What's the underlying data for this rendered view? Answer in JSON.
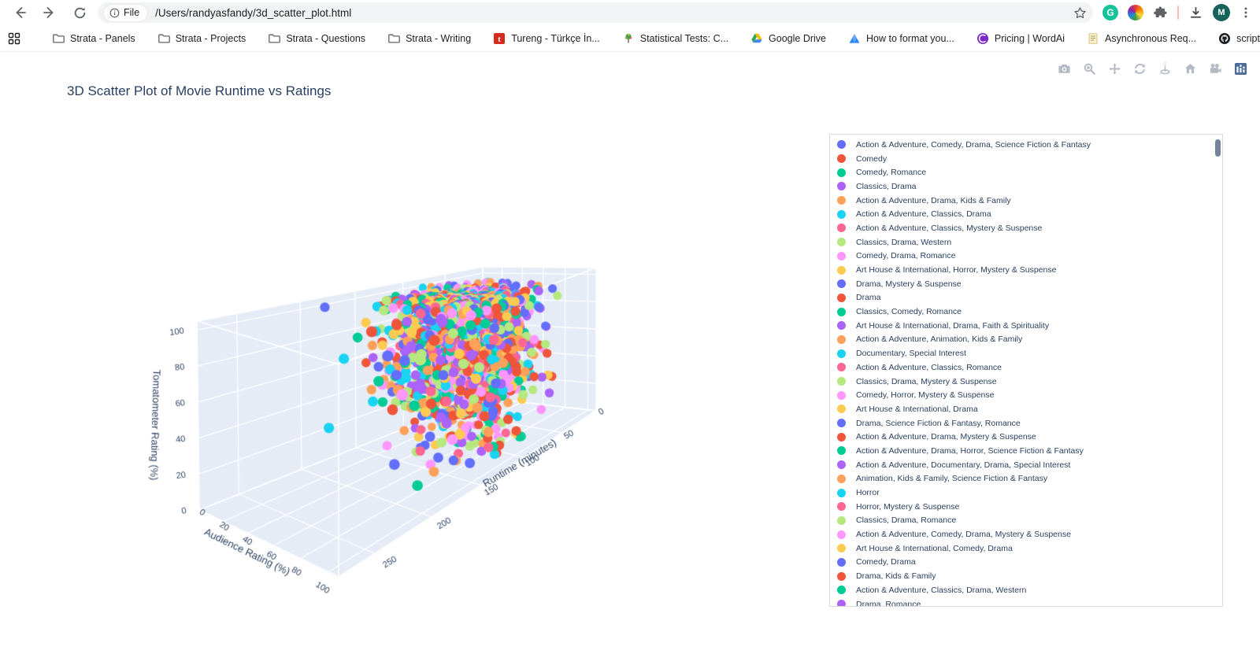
{
  "browser": {
    "toolbar": {
      "back": "back",
      "forward": "forward",
      "reload": "reload"
    },
    "address": {
      "origin_chip_label": "File",
      "url": "/Users/randyasfandy/3d_scatter_plot.html"
    },
    "actions": {
      "grammarly_letter": "G",
      "avatar_letter": "M"
    },
    "bookmarks": [
      {
        "label": "Strata - Panels",
        "icon": "folder"
      },
      {
        "label": "Strata - Projects",
        "icon": "folder"
      },
      {
        "label": "Strata - Questions",
        "icon": "folder"
      },
      {
        "label": "Strata - Writing",
        "icon": "folder"
      },
      {
        "label": "Tureng - Türkçe İn...",
        "icon": "tureng"
      },
      {
        "label": "Statistical Tests: C...",
        "icon": "tree"
      },
      {
        "label": "Google Drive",
        "icon": "drive"
      },
      {
        "label": "How to format you...",
        "icon": "mountain"
      },
      {
        "label": "Pricing | WordAi",
        "icon": "wordai"
      },
      {
        "label": "Asynchronous Req...",
        "icon": "doc"
      },
      {
        "label": "scripts/README.m...",
        "icon": "github"
      }
    ],
    "overflow_chevron": "»"
  },
  "plot": {
    "modebar": [
      "camera",
      "zoom",
      "pan",
      "orbit-rotation",
      "turntable-rotation",
      "reset-camera",
      "reset-camera-last-save",
      "plotly-logo"
    ]
  },
  "chart_data": {
    "type": "scatter3d",
    "title": "3D Scatter Plot of Movie Runtime vs Ratings",
    "scene_bgcolor": "#E5ECF6",
    "grid_color": "#ffffff",
    "text_color": "#2a3f5f",
    "axes": {
      "runtime": {
        "title": "Runtime (minutes)",
        "ticks": [
          0,
          50,
          100,
          150,
          200,
          250
        ],
        "range": [
          0,
          278
        ]
      },
      "audience": {
        "title": "Audience Rating (%)",
        "ticks": [
          0,
          20,
          40,
          60,
          80,
          100
        ],
        "range": [
          0,
          107
        ]
      },
      "tomatometer": {
        "title": "Tomatometer Rating (%)",
        "ticks": [
          0,
          20,
          40,
          60,
          80,
          100
        ],
        "range": [
          0,
          105
        ]
      }
    },
    "colorway": [
      "#636EFA",
      "#EF553B",
      "#00CC96",
      "#AB63FA",
      "#FFA15A",
      "#19D3F3",
      "#FF6692",
      "#B6E880",
      "#FF97FF",
      "#FECB52"
    ],
    "point_cloud": {
      "comment": "dense multi-genre cloud; values estimated from pixels, regenerated deterministically",
      "seed": 11,
      "count": 1750,
      "runtime": {
        "mean": 104,
        "sd": 27,
        "min": 45,
        "max": 272,
        "tail_prob": 0.06,
        "tail_scale": 90
      },
      "audience": {
        "mean": 62,
        "sd": 20,
        "min": 6,
        "max": 100,
        "low_outlier_prob": 0.03
      },
      "tomatometer": {
        "mean": 68,
        "sd": 30,
        "min": 2,
        "max": 100
      }
    },
    "legend": {
      "series": [
        {
          "label": "Action & Adventure, Comedy, Drama, Science Fiction & Fantasy",
          "color": "#636EFA"
        },
        {
          "label": "Comedy",
          "color": "#EF553B"
        },
        {
          "label": "Comedy, Romance",
          "color": "#00CC96"
        },
        {
          "label": "Classics, Drama",
          "color": "#AB63FA"
        },
        {
          "label": "Action & Adventure, Drama, Kids & Family",
          "color": "#FFA15A"
        },
        {
          "label": "Action & Adventure, Classics, Drama",
          "color": "#19D3F3"
        },
        {
          "label": "Action & Adventure, Classics, Mystery & Suspense",
          "color": "#FF6692"
        },
        {
          "label": "Classics, Drama, Western",
          "color": "#B6E880"
        },
        {
          "label": "Comedy, Drama, Romance",
          "color": "#FF97FF"
        },
        {
          "label": "Art House & International, Horror, Mystery & Suspense",
          "color": "#FECB52"
        },
        {
          "label": "Drama, Mystery & Suspense",
          "color": "#636EFA"
        },
        {
          "label": "Drama",
          "color": "#EF553B"
        },
        {
          "label": "Classics, Comedy, Romance",
          "color": "#00CC96"
        },
        {
          "label": "Art House & International, Drama, Faith & Spirituality",
          "color": "#AB63FA"
        },
        {
          "label": "Action & Adventure, Animation, Kids & Family",
          "color": "#FFA15A"
        },
        {
          "label": "Documentary, Special Interest",
          "color": "#19D3F3"
        },
        {
          "label": "Action & Adventure, Classics, Romance",
          "color": "#FF6692"
        },
        {
          "label": "Classics, Drama, Mystery & Suspense",
          "color": "#B6E880"
        },
        {
          "label": "Comedy, Horror, Mystery & Suspense",
          "color": "#FF97FF"
        },
        {
          "label": "Art House & International, Drama",
          "color": "#FECB52"
        },
        {
          "label": "Drama, Science Fiction & Fantasy, Romance",
          "color": "#636EFA"
        },
        {
          "label": "Action & Adventure, Drama, Mystery & Suspense",
          "color": "#EF553B"
        },
        {
          "label": "Action & Adventure, Drama, Horror, Science Fiction & Fantasy",
          "color": "#00CC96"
        },
        {
          "label": "Action & Adventure, Documentary, Drama, Special Interest",
          "color": "#AB63FA"
        },
        {
          "label": "Animation, Kids & Family, Science Fiction & Fantasy",
          "color": "#FFA15A"
        },
        {
          "label": "Horror",
          "color": "#19D3F3"
        },
        {
          "label": "Horror, Mystery & Suspense",
          "color": "#FF6692"
        },
        {
          "label": "Classics, Drama, Romance",
          "color": "#B6E880"
        },
        {
          "label": "Action & Adventure, Comedy, Drama, Mystery & Suspense",
          "color": "#FF97FF"
        },
        {
          "label": "Art House & International, Comedy, Drama",
          "color": "#FECB52"
        },
        {
          "label": "Comedy, Drama",
          "color": "#636EFA"
        },
        {
          "label": "Drama, Kids & Family",
          "color": "#EF553B"
        },
        {
          "label": "Action & Adventure, Classics, Drama, Western",
          "color": "#00CC96"
        },
        {
          "label": "Drama, Romance",
          "color": "#AB63FA"
        }
      ]
    }
  }
}
